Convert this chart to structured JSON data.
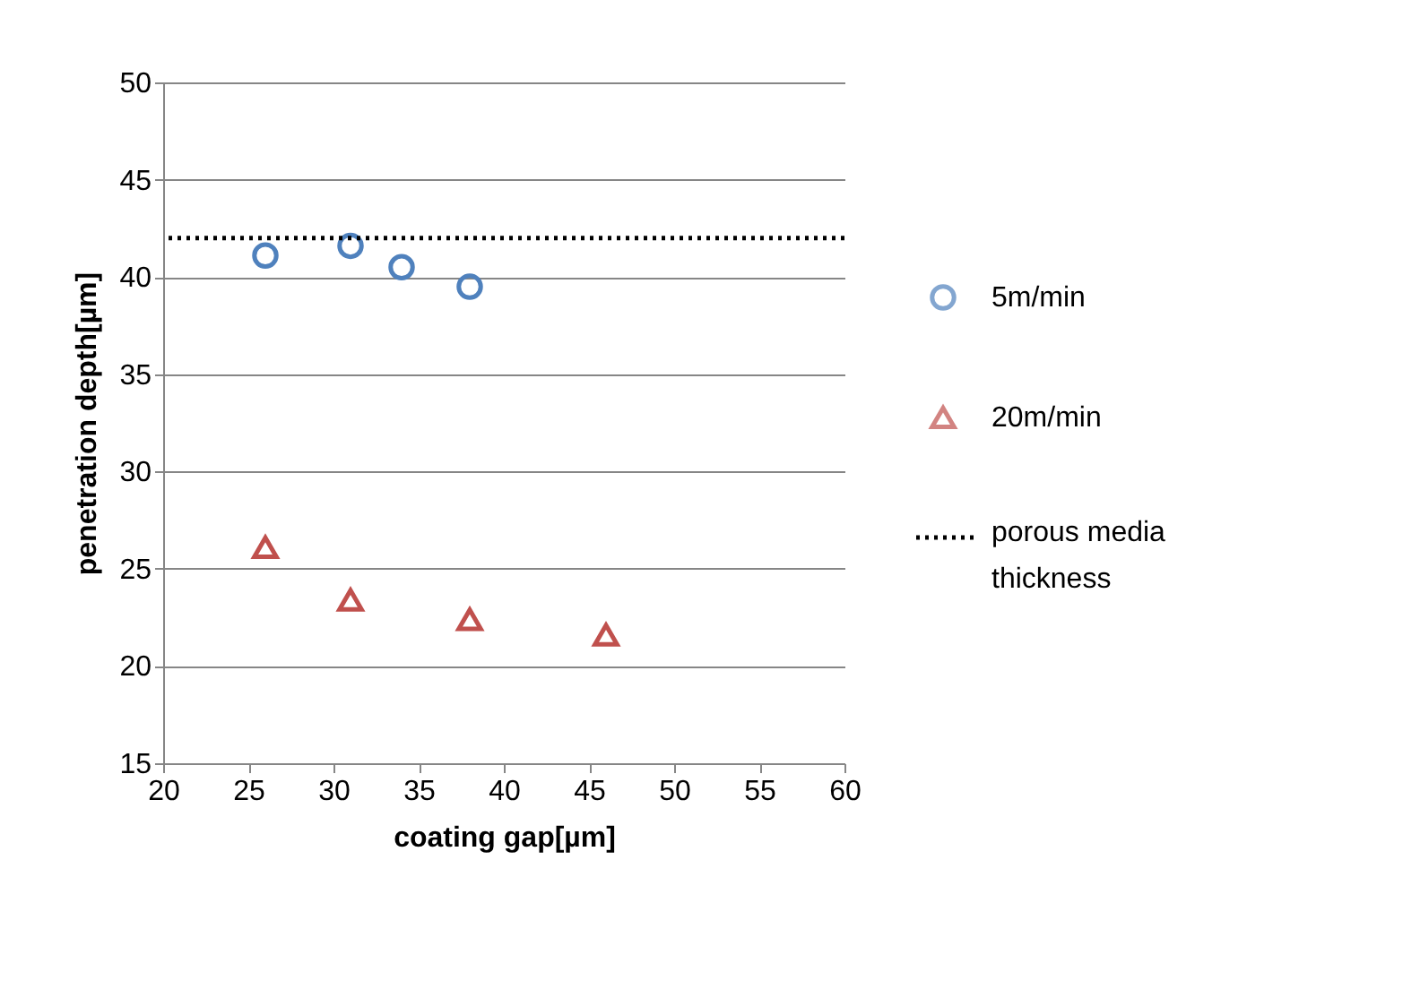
{
  "chart_data": {
    "type": "scatter",
    "xlabel": "coating gap[µm]",
    "ylabel": "penetration depth[µm]",
    "xlim": [
      20,
      60
    ],
    "xticks": [
      20,
      25,
      30,
      35,
      40,
      45,
      50,
      55,
      60
    ],
    "ylim": [
      15,
      50
    ],
    "yticks": [
      15,
      20,
      25,
      30,
      35,
      40,
      45,
      50
    ],
    "grid": "y",
    "legend": "right",
    "series": [
      {
        "name": "5m/min",
        "color": "#4f81bd",
        "marker": "circle",
        "x": [
          26,
          31,
          34,
          38
        ],
        "values": [
          41.1,
          41.6,
          40.5,
          39.5
        ]
      },
      {
        "name": "20m/min",
        "color": "#c0504d",
        "marker": "triangle",
        "x": [
          26,
          31,
          38,
          46
        ],
        "values": [
          26.1,
          23.4,
          22.4,
          21.6
        ]
      }
    ],
    "ref_lines": [
      {
        "axis": "y",
        "value": 42,
        "label": "porous media thickness",
        "color": "#000000",
        "line_style": "dotted"
      }
    ]
  }
}
